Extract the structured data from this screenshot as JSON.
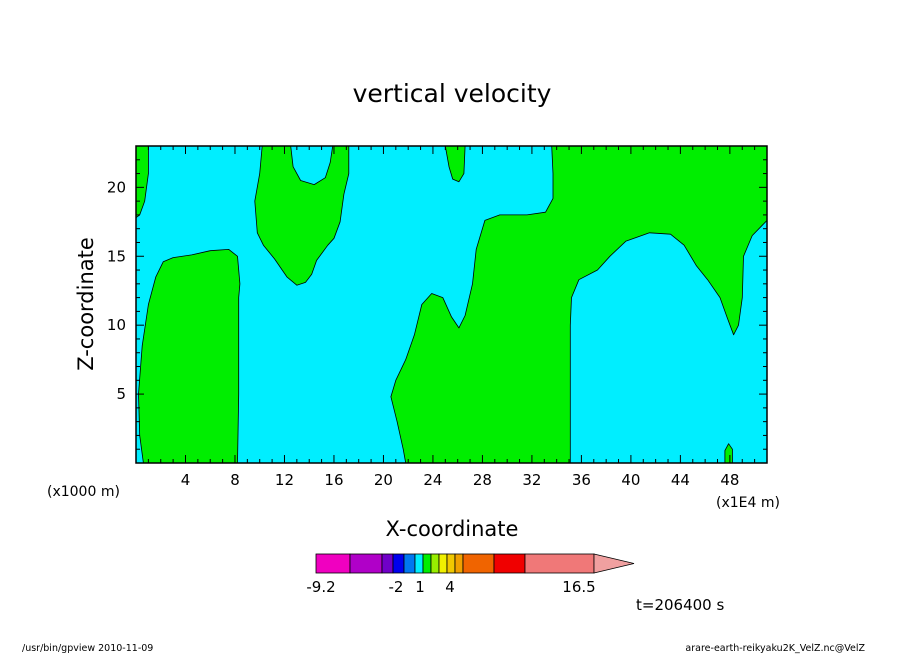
{
  "chart_data": {
    "type": "heatmap",
    "title": "vertical velocity",
    "xlabel": "X-coordinate",
    "ylabel": "Z-coordinate",
    "x_unit": "(x1E4 m)",
    "y_unit": "(x1000 m)",
    "xlim": [
      0,
      51
    ],
    "ylim": [
      0,
      23
    ],
    "xticks": [
      4,
      8,
      12,
      16,
      20,
      24,
      28,
      32,
      36,
      40,
      44,
      48
    ],
    "yticks": [
      5,
      10,
      15,
      20
    ],
    "regions": {
      "background": {
        "level_range": "-2 to 0",
        "color": "#00eeff"
      },
      "positive": {
        "level_range": "0 to 1",
        "color": "#00ee00"
      }
    },
    "green_regions": [
      {
        "name": "region-left-edge-top",
        "points": [
          [
            0,
            23
          ],
          [
            1,
            23
          ],
          [
            1,
            21
          ],
          [
            0.7,
            19
          ],
          [
            0.3,
            18
          ],
          [
            0,
            17.8
          ]
        ]
      },
      {
        "name": "region-left-column",
        "points": [
          [
            0.6,
            0
          ],
          [
            8.2,
            0
          ],
          [
            8.3,
            5
          ],
          [
            8.3,
            12
          ],
          [
            8.4,
            13
          ],
          [
            8.2,
            15
          ],
          [
            7.5,
            15.5
          ],
          [
            6,
            15.4
          ],
          [
            4.5,
            15.1
          ],
          [
            3,
            14.9
          ],
          [
            2.2,
            14.6
          ],
          [
            1.6,
            13.5
          ],
          [
            1,
            11.5
          ],
          [
            0.5,
            8.5
          ],
          [
            0.2,
            5
          ],
          [
            0.3,
            2
          ]
        ]
      },
      {
        "name": "region-upper-middle",
        "points": [
          [
            10.2,
            23
          ],
          [
            12.5,
            23
          ],
          [
            12.7,
            21.5
          ],
          [
            13.3,
            20.5
          ],
          [
            14.4,
            20.2
          ],
          [
            15.3,
            20.7
          ],
          [
            15.7,
            21.8
          ],
          [
            15.9,
            23
          ],
          [
            17.2,
            23
          ],
          [
            17.2,
            21
          ],
          [
            16.8,
            19.5
          ],
          [
            16.5,
            17.5
          ],
          [
            16,
            16.3
          ],
          [
            15.5,
            15.8
          ],
          [
            14.6,
            14.7
          ],
          [
            14.2,
            13.7
          ],
          [
            13.7,
            13.1
          ],
          [
            13,
            12.9
          ],
          [
            12.2,
            13.5
          ],
          [
            11.2,
            14.8
          ],
          [
            10.3,
            15.8
          ],
          [
            9.8,
            16.7
          ],
          [
            9.6,
            19
          ],
          [
            10,
            21
          ]
        ]
      },
      {
        "name": "region-top-sliver",
        "points": [
          [
            25,
            23
          ],
          [
            26.6,
            23
          ],
          [
            26.5,
            21
          ],
          [
            26.1,
            20.4
          ],
          [
            25.6,
            20.6
          ],
          [
            25.3,
            21.5
          ]
        ]
      },
      {
        "name": "region-right-main",
        "points": [
          [
            21.8,
            0
          ],
          [
            35.1,
            0
          ],
          [
            35.1,
            10
          ],
          [
            35.2,
            12
          ],
          [
            35.8,
            13.3
          ],
          [
            37.3,
            14
          ],
          [
            38.3,
            15
          ],
          [
            39.6,
            16.1
          ],
          [
            41.5,
            16.7
          ],
          [
            43.2,
            16.6
          ],
          [
            44.3,
            15.8
          ],
          [
            45.3,
            14.3
          ],
          [
            46.2,
            13.3
          ],
          [
            47.2,
            12
          ],
          [
            47.8,
            10.5
          ],
          [
            48.3,
            9.3
          ],
          [
            48.7,
            10
          ],
          [
            49,
            12
          ],
          [
            49.1,
            15
          ],
          [
            49.8,
            16.5
          ],
          [
            51,
            17.6
          ],
          [
            51,
            23
          ],
          [
            33.6,
            23
          ],
          [
            33.7,
            21
          ],
          [
            33.7,
            19.2
          ],
          [
            33.1,
            18.2
          ],
          [
            31.6,
            18
          ],
          [
            29.4,
            18
          ],
          [
            28.2,
            17.6
          ],
          [
            27.5,
            15.5
          ],
          [
            27.2,
            13
          ],
          [
            26.6,
            10.7
          ],
          [
            26.1,
            9.8
          ],
          [
            25.5,
            10.6
          ],
          [
            24.8,
            12
          ],
          [
            23.9,
            12.3
          ],
          [
            23.1,
            11.5
          ],
          [
            22.5,
            9.3
          ],
          [
            21.8,
            7.5
          ],
          [
            21,
            6
          ],
          [
            20.6,
            4.8
          ],
          [
            21.1,
            3
          ],
          [
            21.6,
            1
          ]
        ]
      },
      {
        "name": "region-bottom-spot",
        "points": [
          [
            47.6,
            0
          ],
          [
            48.2,
            0
          ],
          [
            48.2,
            1
          ],
          [
            47.9,
            1.4
          ],
          [
            47.6,
            0.9
          ]
        ]
      }
    ],
    "colorbar": {
      "colors": [
        "#f000c0",
        "#b000c8",
        "#7000c8",
        "#0000ee",
        "#0078f0",
        "#00eeff",
        "#00ee00",
        "#98ee00",
        "#f0f000",
        "#f0c800",
        "#f0a000",
        "#f06400",
        "#f00000",
        "#f07878",
        "#f0a0a0"
      ],
      "tick_labels": [
        "-9.2",
        "-2",
        "1",
        "4",
        "16.5"
      ]
    },
    "time_label": "t=206400 s"
  },
  "footer": {
    "left": "/usr/bin/gpview   2010-11-09",
    "right": "arare-earth-reikyaku2K_VelZ.nc@VelZ"
  }
}
